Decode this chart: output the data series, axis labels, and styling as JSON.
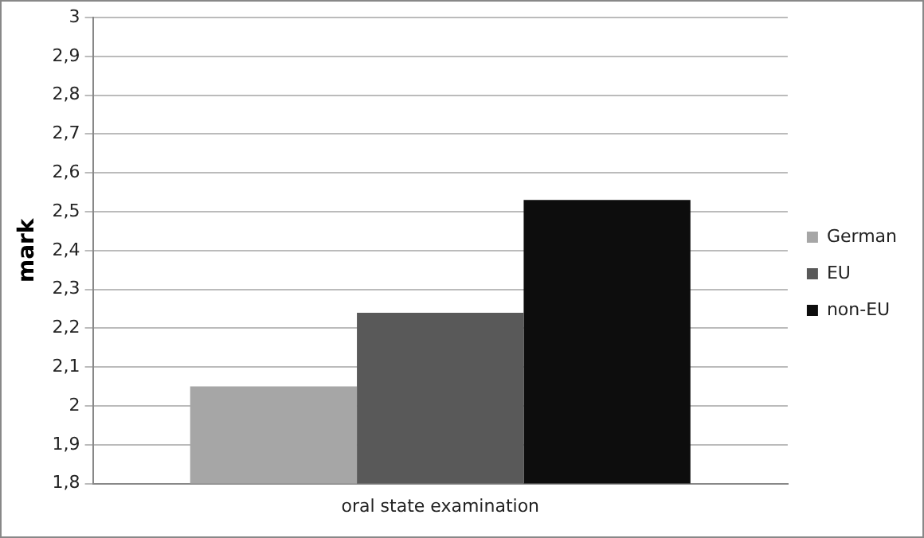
{
  "chart_data": {
    "type": "bar",
    "ylabel": "mark",
    "categories": [
      "oral state examination"
    ],
    "series": [
      {
        "name": "German",
        "color": "#a6a6a6",
        "values": [
          2.05
        ]
      },
      {
        "name": "EU",
        "color": "#595959",
        "values": [
          2.24
        ]
      },
      {
        "name": "non-EU",
        "color": "#0d0d0d",
        "values": [
          2.53
        ]
      }
    ],
    "ylim": [
      1.8,
      3
    ],
    "yticks": [
      {
        "value": 1.8,
        "label": "1,8"
      },
      {
        "value": 1.9,
        "label": "1,9"
      },
      {
        "value": 2,
        "label": "2"
      },
      {
        "value": 2.1,
        "label": "2,1"
      },
      {
        "value": 2.2,
        "label": "2,2"
      },
      {
        "value": 2.3,
        "label": "2,3"
      },
      {
        "value": 2.4,
        "label": "2,4"
      },
      {
        "value": 2.5,
        "label": "2,5"
      },
      {
        "value": 2.6,
        "label": "2,6"
      },
      {
        "value": 2.7,
        "label": "2,7"
      },
      {
        "value": 2.8,
        "label": "2,8"
      },
      {
        "value": 2.9,
        "label": "2,9"
      },
      {
        "value": 3,
        "label": "3"
      }
    ],
    "grid": "y",
    "legend": "right"
  }
}
